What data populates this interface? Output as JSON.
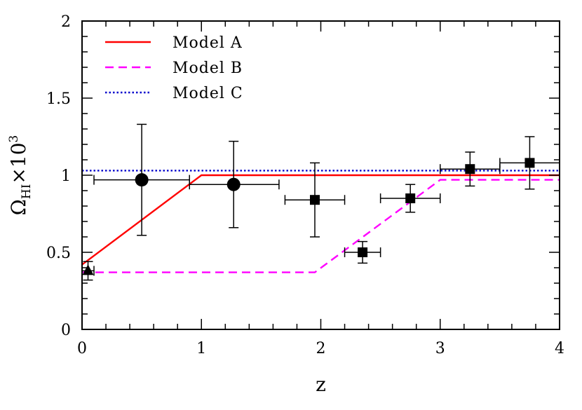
{
  "chart_data": {
    "type": "scatter",
    "title": "",
    "xlabel": "z",
    "ylabel": {
      "symbol": "Ω",
      "subscript": "HI",
      "times": "×",
      "base": "10",
      "exponent": "3"
    },
    "xlim": [
      0,
      4
    ],
    "ylim": [
      0,
      2
    ],
    "x_ticks": [
      "0",
      "1",
      "2",
      "3",
      "4"
    ],
    "y_ticks": [
      "0",
      "0.5",
      "1",
      "1.5",
      "2"
    ],
    "x_tick_values": [
      0,
      1,
      2,
      3,
      4
    ],
    "y_tick_values": [
      0,
      0.5,
      1,
      1.5,
      2
    ],
    "x_minor_step": 0.2,
    "y_minor_step": 0.1,
    "grid": false,
    "legend_position": "top-left",
    "models": [
      {
        "name": "Model A",
        "color": "#ff0000",
        "style": "solid",
        "points": [
          [
            0,
            0.42
          ],
          [
            1,
            1.0
          ],
          [
            4,
            1.0
          ]
        ]
      },
      {
        "name": "Model B",
        "color": "#ff00ff",
        "style": "dashed",
        "points": [
          [
            0,
            0.37
          ],
          [
            1.95,
            0.37
          ],
          [
            3.0,
            0.97
          ],
          [
            4,
            0.97
          ]
        ]
      },
      {
        "name": "Model C",
        "color": "#0000cc",
        "style": "dotted",
        "points": [
          [
            0,
            1.03
          ],
          [
            4,
            1.03
          ]
        ]
      }
    ],
    "data_series": [
      {
        "marker": "triangle",
        "points": [
          {
            "x": 0.05,
            "y": 0.38,
            "xerr": [
              0.05,
              0.05
            ],
            "yerr": [
              0.06,
              0.06
            ]
          }
        ]
      },
      {
        "marker": "circle",
        "points": [
          {
            "x": 0.5,
            "y": 0.97,
            "xerr": [
              0.4,
              0.4
            ],
            "yerr": [
              0.36,
              0.36
            ]
          },
          {
            "x": 1.27,
            "y": 0.94,
            "xerr": [
              0.37,
              0.38
            ],
            "yerr": [
              0.28,
              0.28
            ]
          }
        ]
      },
      {
        "marker": "square",
        "points": [
          {
            "x": 1.95,
            "y": 0.84,
            "xerr": [
              0.25,
              0.25
            ],
            "yerr": [
              0.24,
              0.24
            ]
          },
          {
            "x": 2.35,
            "y": 0.5,
            "xerr": [
              0.15,
              0.15
            ],
            "yerr": [
              0.07,
              0.07
            ]
          },
          {
            "x": 2.75,
            "y": 0.85,
            "xerr": [
              0.25,
              0.25
            ],
            "yerr": [
              0.09,
              0.09
            ]
          },
          {
            "x": 3.25,
            "y": 1.04,
            "xerr": [
              0.25,
              0.25
            ],
            "yerr": [
              0.11,
              0.11
            ]
          },
          {
            "x": 3.75,
            "y": 1.08,
            "xerr": [
              0.25,
              0.25
            ],
            "yerr": [
              0.17,
              0.17
            ]
          }
        ]
      }
    ]
  }
}
